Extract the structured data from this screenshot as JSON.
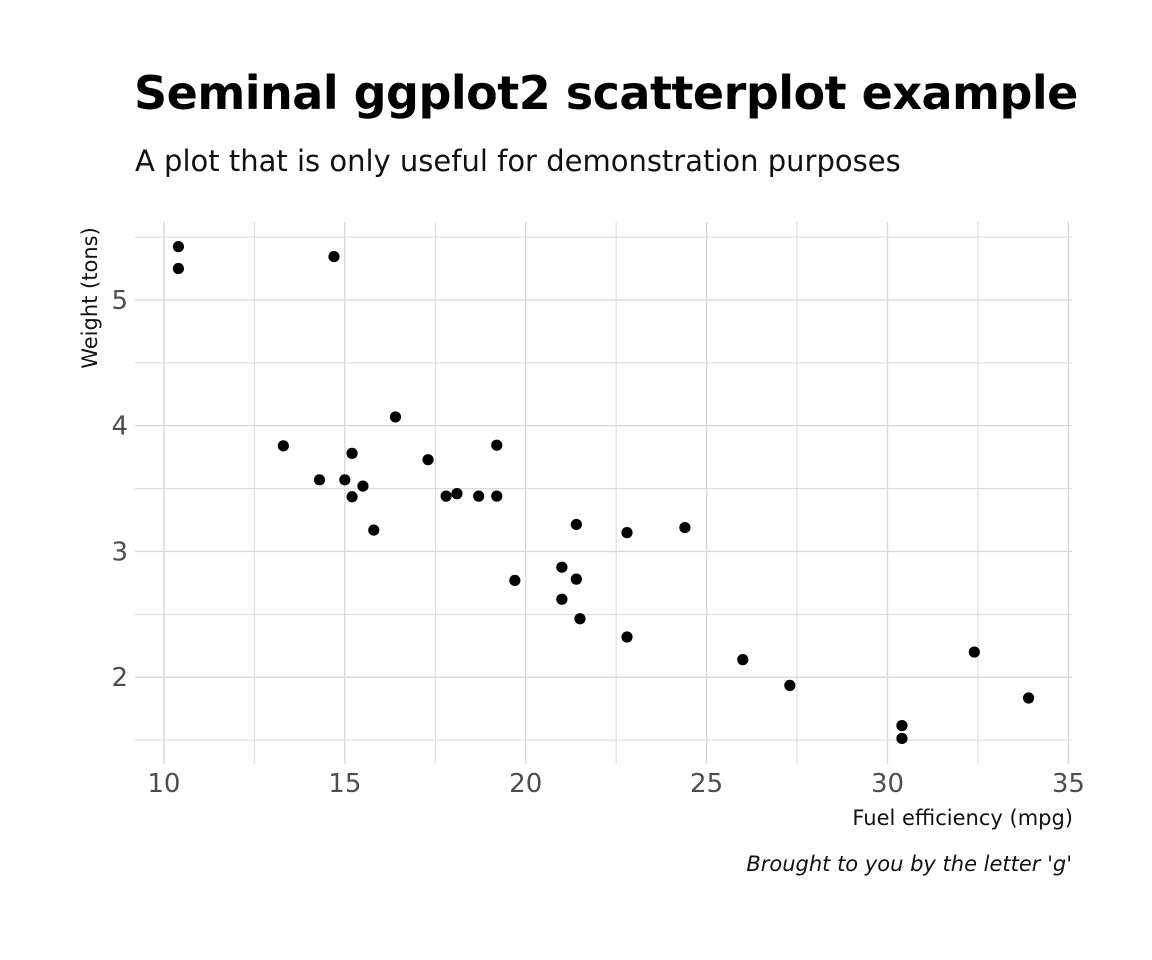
{
  "chart_data": {
    "type": "scatter",
    "title": "Seminal ggplot2 scatterplot example",
    "subtitle": "A plot that is only useful for demonstration purposes",
    "caption": "Brought to you by the letter 'g'",
    "xlabel": "Fuel efficiency (mpg)",
    "ylabel": "Weight (tons)",
    "xlim": [
      9.2,
      35.1
    ],
    "ylim": [
      1.31,
      5.62
    ],
    "xticks": [
      10,
      15,
      20,
      25,
      30,
      35
    ],
    "yticks": [
      2,
      3,
      4,
      5
    ],
    "xtick_labels": [
      "10",
      "15",
      "20",
      "25",
      "30",
      "35"
    ],
    "ytick_labels": [
      "2",
      "3",
      "4",
      "5"
    ],
    "grid": true,
    "point_color": "#000000",
    "grid_color": "#d9d9d9",
    "points": [
      {
        "x": 21.0,
        "y": 2.62
      },
      {
        "x": 21.0,
        "y": 2.875
      },
      {
        "x": 22.8,
        "y": 2.32
      },
      {
        "x": 21.4,
        "y": 3.215
      },
      {
        "x": 18.7,
        "y": 3.44
      },
      {
        "x": 18.1,
        "y": 3.46
      },
      {
        "x": 14.3,
        "y": 3.57
      },
      {
        "x": 24.4,
        "y": 3.19
      },
      {
        "x": 22.8,
        "y": 3.15
      },
      {
        "x": 19.2,
        "y": 3.44
      },
      {
        "x": 17.8,
        "y": 3.44
      },
      {
        "x": 16.4,
        "y": 4.07
      },
      {
        "x": 17.3,
        "y": 3.73
      },
      {
        "x": 15.2,
        "y": 3.78
      },
      {
        "x": 10.4,
        "y": 5.25
      },
      {
        "x": 10.4,
        "y": 5.424
      },
      {
        "x": 14.7,
        "y": 5.345
      },
      {
        "x": 32.4,
        "y": 2.2
      },
      {
        "x": 30.4,
        "y": 1.615
      },
      {
        "x": 33.9,
        "y": 1.835
      },
      {
        "x": 21.5,
        "y": 2.465
      },
      {
        "x": 15.5,
        "y": 3.52
      },
      {
        "x": 15.2,
        "y": 3.435
      },
      {
        "x": 13.3,
        "y": 3.84
      },
      {
        "x": 19.2,
        "y": 3.845
      },
      {
        "x": 27.3,
        "y": 1.935
      },
      {
        "x": 26.0,
        "y": 2.14
      },
      {
        "x": 30.4,
        "y": 1.513
      },
      {
        "x": 15.8,
        "y": 3.17
      },
      {
        "x": 19.7,
        "y": 2.77
      },
      {
        "x": 15.0,
        "y": 3.57
      },
      {
        "x": 21.4,
        "y": 2.78
      }
    ]
  }
}
